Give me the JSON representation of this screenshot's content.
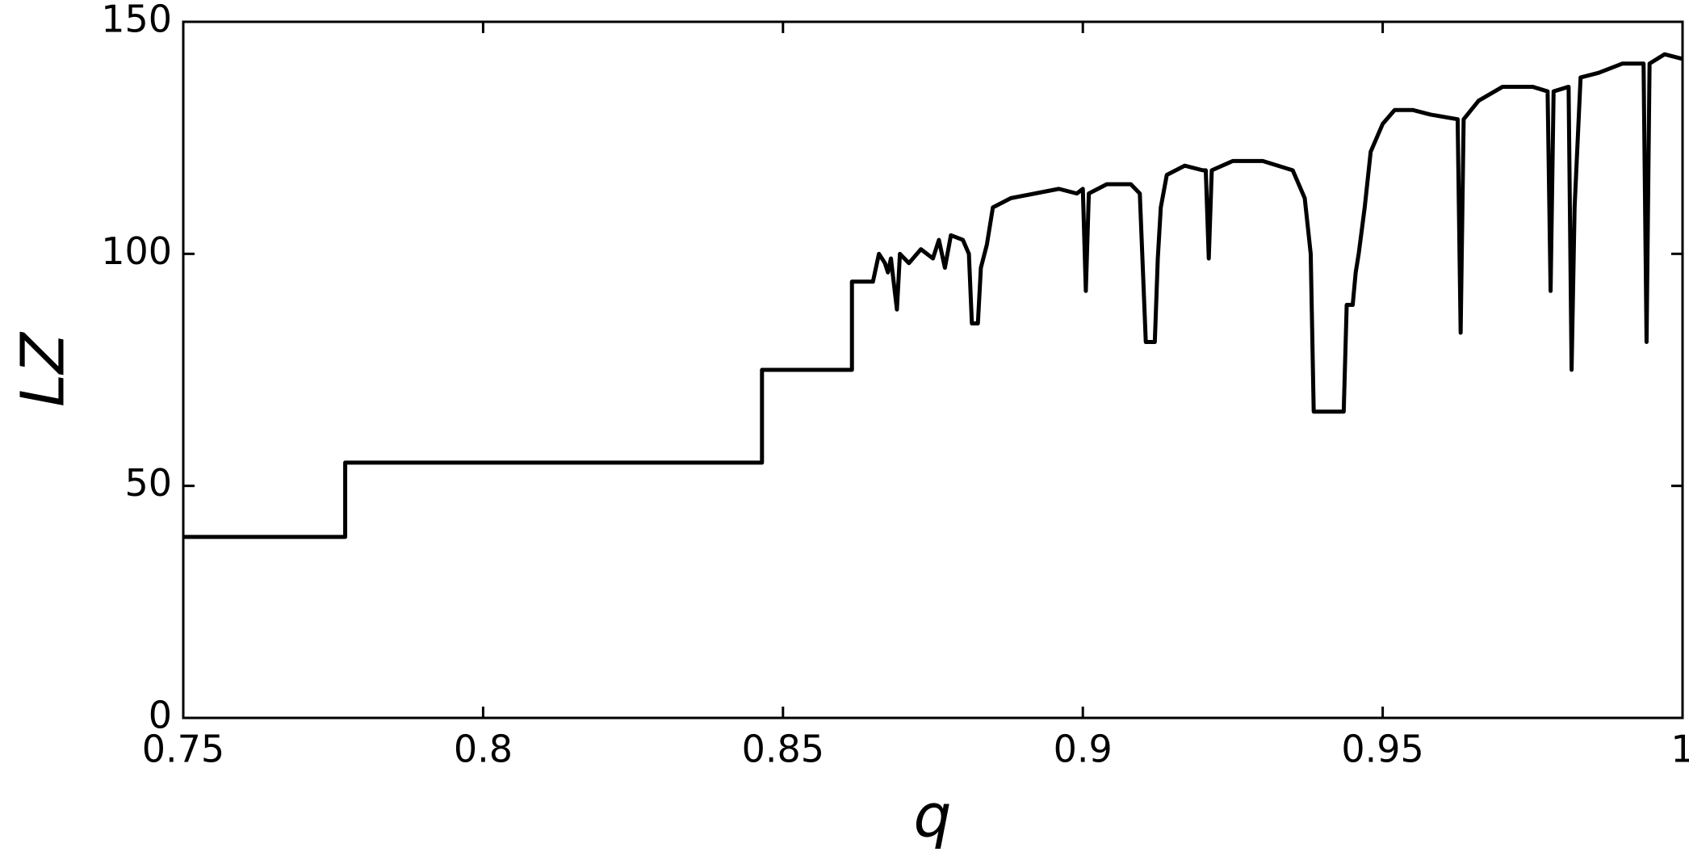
{
  "chart_data": {
    "type": "line",
    "xlabel": "q",
    "ylabel": "LZ",
    "color": "#000000",
    "xlim": [
      0.75,
      1
    ],
    "xticks": [
      0.75,
      0.8,
      0.85,
      0.9,
      0.95,
      1
    ],
    "ylim": [
      0,
      150
    ],
    "yticks": [
      0,
      50,
      100,
      150
    ],
    "x": [
      0.75,
      0.777,
      0.777,
      0.8465,
      0.8465,
      0.8615,
      0.8615,
      0.865,
      0.866,
      0.867,
      0.8675,
      0.868,
      0.869,
      0.8695,
      0.871,
      0.873,
      0.875,
      0.876,
      0.877,
      0.878,
      0.88,
      0.881,
      0.8815,
      0.8825,
      0.883,
      0.884,
      0.885,
      0.888,
      0.892,
      0.896,
      0.899,
      0.9,
      0.9005,
      0.901,
      0.904,
      0.908,
      0.9095,
      0.9105,
      0.912,
      0.9125,
      0.913,
      0.914,
      0.917,
      0.92,
      0.9205,
      0.921,
      0.9215,
      0.925,
      0.93,
      0.935,
      0.937,
      0.938,
      0.9385,
      0.9435,
      0.944,
      0.945,
      0.9455,
      0.946,
      0.947,
      0.948,
      0.95,
      0.952,
      0.955,
      0.958,
      0.9625,
      0.963,
      0.9635,
      0.966,
      0.97,
      0.975,
      0.9775,
      0.978,
      0.9785,
      0.981,
      0.9815,
      0.982,
      0.983,
      0.986,
      0.99,
      0.9935,
      0.994,
      0.9945,
      0.997,
      1.0
    ],
    "values": [
      39,
      39,
      55,
      55,
      75,
      75,
      94,
      94,
      100,
      98,
      96,
      99,
      88,
      100,
      98,
      101,
      99,
      103,
      97,
      104,
      103,
      100,
      85,
      85,
      97,
      102,
      110,
      112,
      113,
      114,
      113,
      114,
      92,
      113,
      115,
      115,
      113,
      81,
      81,
      99,
      110,
      117,
      119,
      118,
      118,
      99,
      118,
      120,
      120,
      118,
      112,
      100,
      66,
      66,
      89,
      89,
      96,
      100,
      110,
      122,
      128,
      131,
      131,
      130,
      129,
      83,
      129,
      133,
      136,
      136,
      135,
      92,
      135,
      136,
      75,
      110,
      138,
      139,
      141,
      141,
      81,
      141,
      143,
      142
    ]
  }
}
